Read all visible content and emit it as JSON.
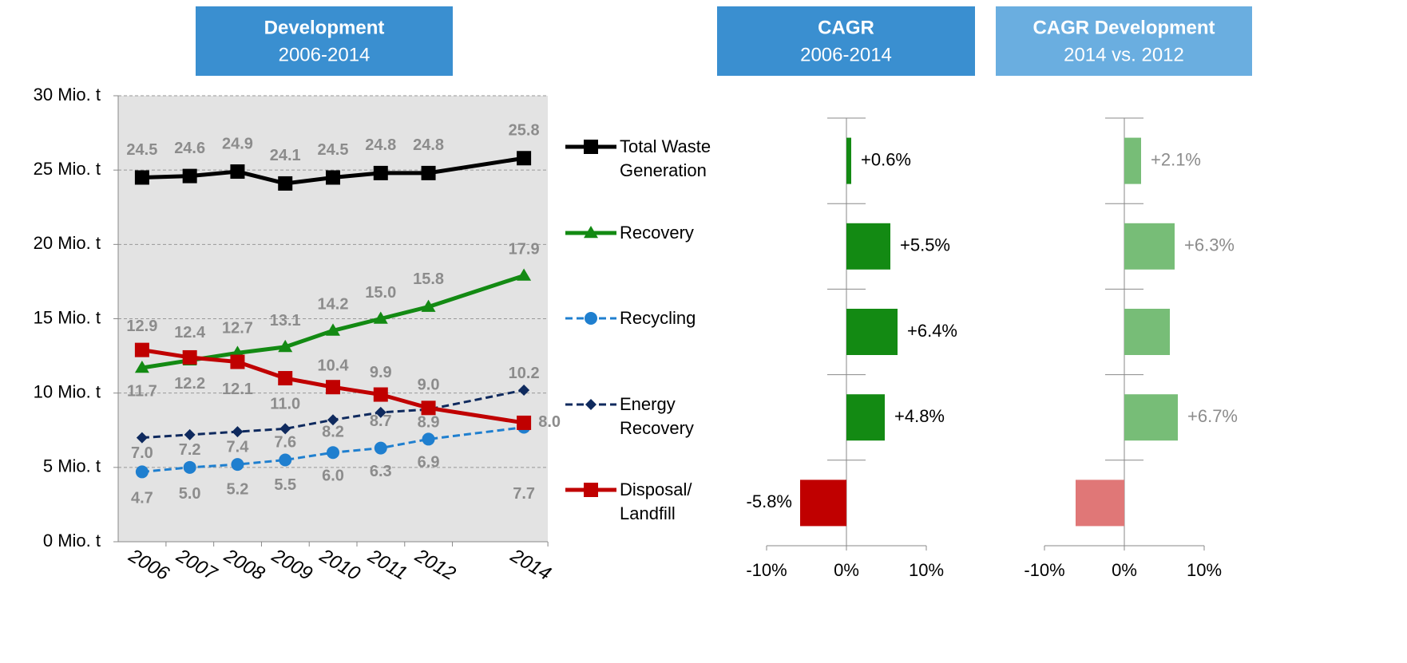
{
  "chart_data": [
    {
      "type": "line",
      "title": "Development",
      "subtitle": "2006-2014",
      "x": [
        2006,
        2007,
        2008,
        2009,
        2010,
        2011,
        2012,
        2014
      ],
      "xlim": [
        2005.5,
        2014.5
      ],
      "xticks": [
        2006,
        2007,
        2008,
        2009,
        2010,
        2011,
        2012,
        2014
      ],
      "ylim": [
        0,
        30
      ],
      "yticks": [
        {
          "value": 0,
          "label": "0 Mio. t"
        },
        {
          "value": 5,
          "label": "5 Mio. t"
        },
        {
          "value": 10,
          "label": "10 Mio. t"
        },
        {
          "value": 15,
          "label": "15 Mio. t"
        },
        {
          "value": 20,
          "label": "20 Mio. t"
        },
        {
          "value": 25,
          "label": "25 Mio. t"
        },
        {
          "value": 30,
          "label": "30 Mio. t"
        }
      ],
      "grid": true,
      "series": [
        {
          "name": "Total Waste Generation",
          "color": "#000000",
          "marker": "square",
          "dashed": false,
          "values": [
            24.5,
            24.6,
            24.9,
            24.1,
            24.5,
            24.8,
            24.8,
            25.8
          ],
          "value_labels": [
            "24.5",
            "24.6",
            "24.9",
            "24.1",
            "24.5",
            "24.8",
            "24.8",
            "25.8"
          ]
        },
        {
          "name": "Recovery",
          "color": "#138a13",
          "marker": "triangle",
          "dashed": false,
          "values": [
            11.7,
            12.2,
            12.7,
            13.1,
            14.2,
            15.0,
            15.8,
            17.9
          ],
          "value_labels": [
            "11.7",
            "12.2",
            "12.7",
            "13.1",
            "14.2",
            "15.0",
            "15.8",
            "17.9"
          ]
        },
        {
          "name": "Recycling",
          "color": "#1f7fcf",
          "marker": "circle",
          "dashed": true,
          "values": [
            4.7,
            5.0,
            5.2,
            5.5,
            6.0,
            6.3,
            6.9,
            7.7
          ],
          "value_labels": [
            "4.7",
            "5.0",
            "5.2",
            "5.5",
            "6.0",
            "6.3",
            "6.9",
            "7.7"
          ]
        },
        {
          "name": "Energy Recovery",
          "color": "#0f2a5e",
          "marker": "diamond",
          "dashed": true,
          "values": [
            7.0,
            7.2,
            7.4,
            7.6,
            8.2,
            8.7,
            8.9,
            10.2
          ],
          "value_labels": [
            "7.0",
            "7.2",
            "7.4",
            "7.6",
            "8.2",
            "8.7",
            "8.9",
            "10.2"
          ]
        },
        {
          "name": "Disposal/ Landfill",
          "color": "#c00000",
          "marker": "square",
          "dashed": false,
          "values": [
            12.9,
            12.4,
            12.1,
            11.0,
            10.4,
            9.9,
            9.0,
            8.0
          ],
          "value_labels": [
            "12.9",
            "12.4",
            "12.1",
            "11.0",
            "10.4",
            "9.9",
            "9.0",
            "8.0"
          ]
        }
      ]
    },
    {
      "type": "hbar",
      "title": "CAGR",
      "subtitle": "2006-2014",
      "values": [
        0.6,
        5.5,
        6.4,
        4.8,
        -5.8
      ],
      "value_labels": [
        "+0.6%",
        "+5.5%",
        "+6.4%",
        "+4.8%",
        "-5.8%"
      ],
      "colors": [
        "#138a13",
        "#138a13",
        "#138a13",
        "#138a13",
        "#c00000"
      ],
      "xlim": [
        -10,
        10
      ],
      "xticks": [
        {
          "value": -10,
          "label": "-10%"
        },
        {
          "value": 0,
          "label": "0%"
        },
        {
          "value": 10,
          "label": "10%"
        }
      ]
    },
    {
      "type": "hbar",
      "title": "CAGR Development",
      "subtitle": "2014 vs. 2012",
      "values": [
        2.1,
        6.3,
        5.7,
        6.7,
        -6.1
      ],
      "value_labels": [
        "+2.1%",
        "+6.3%",
        null,
        "+6.7%",
        null
      ],
      "colors": [
        "#77bd77",
        "#77bd77",
        "#77bd77",
        "#77bd77",
        "#e07777"
      ],
      "xlim": [
        -10,
        10
      ],
      "xticks": [
        {
          "value": -10,
          "label": "-10%"
        },
        {
          "value": 0,
          "label": "0%"
        },
        {
          "value": 10,
          "label": "10%"
        }
      ]
    }
  ]
}
